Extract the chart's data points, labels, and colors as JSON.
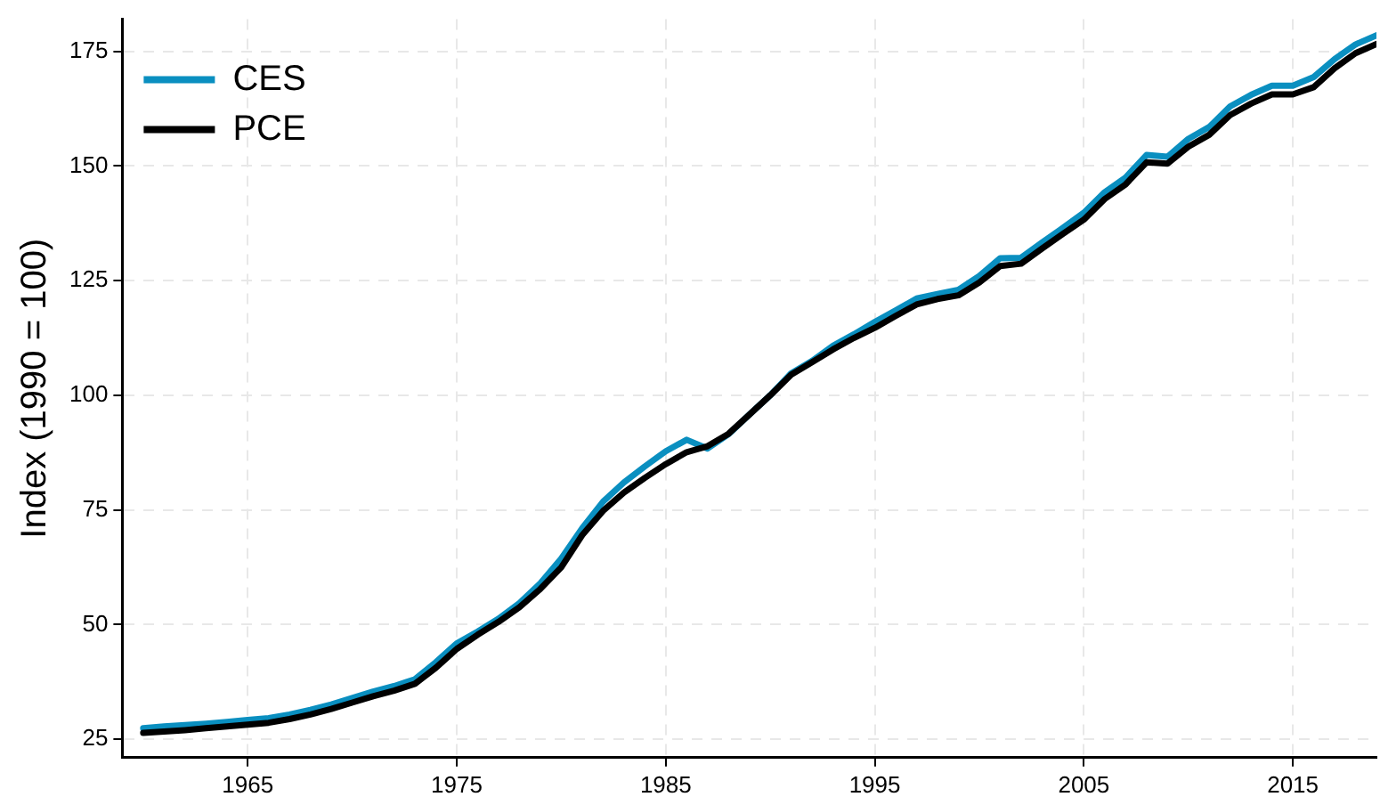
{
  "chart_data": {
    "type": "line",
    "ylabel": "Index (1990 = 100)",
    "x": [
      1960,
      1961,
      1962,
      1963,
      1964,
      1965,
      1966,
      1967,
      1968,
      1969,
      1970,
      1971,
      1972,
      1973,
      1974,
      1975,
      1976,
      1977,
      1978,
      1979,
      1980,
      1981,
      1982,
      1983,
      1984,
      1985,
      1986,
      1987,
      1988,
      1989,
      1990,
      1991,
      1992,
      1993,
      1994,
      1995,
      1996,
      1997,
      1998,
      1999,
      2000,
      2001,
      2002,
      2003,
      2004,
      2005,
      2006,
      2007,
      2008,
      2009,
      2010,
      2011,
      2012,
      2013,
      2014,
      2015,
      2016,
      2017,
      2018,
      2019
    ],
    "series": [
      {
        "name": "CES",
        "color": "#0a8fc0",
        "values": [
          27.4,
          27.8,
          28.1,
          28.4,
          28.8,
          29.2,
          29.6,
          30.4,
          31.4,
          32.6,
          34.0,
          35.4,
          36.6,
          38.1,
          41.8,
          45.9,
          48.5,
          51.3,
          54.7,
          59.0,
          64.4,
          71.0,
          76.8,
          81.0,
          84.5,
          87.8,
          90.3,
          88.4,
          91.5,
          95.8,
          100,
          104.8,
          107.5,
          110.8,
          113.3,
          116.0,
          118.5,
          121.1,
          122.1,
          123.0,
          126.0,
          129.9,
          130.0,
          133.3,
          136.5,
          139.8,
          144.3,
          147.5,
          152.4,
          152.0,
          155.9,
          158.5,
          163.0,
          165.5,
          167.5,
          167.5,
          169.4,
          173.3,
          176.5,
          178.5
        ]
      },
      {
        "name": "PCE",
        "color": "#000000",
        "values": [
          26.4,
          26.7,
          27.0,
          27.4,
          27.8,
          28.2,
          28.6,
          29.4,
          30.4,
          31.6,
          33.0,
          34.4,
          35.6,
          37.1,
          40.6,
          44.7,
          47.8,
          50.6,
          53.8,
          57.8,
          62.5,
          69.5,
          74.8,
          78.8,
          82.0,
          85.0,
          87.6,
          88.9,
          91.6,
          95.8,
          100,
          104.5,
          107.2,
          110.0,
          112.5,
          114.7,
          117.3,
          119.8,
          121.0,
          121.8,
          124.6,
          128.2,
          128.7,
          132.0,
          135.2,
          138.3,
          142.8,
          146.0,
          150.8,
          150.5,
          154.2,
          156.8,
          161.1,
          163.6,
          165.6,
          165.6,
          167.2,
          171.3,
          174.6,
          176.6
        ]
      }
    ],
    "xlim": [
      1959,
      2019
    ],
    "xticks": [
      1965,
      1975,
      1985,
      1995,
      2005,
      2015
    ],
    "ylim": [
      21,
      182
    ],
    "yticks": [
      25,
      50,
      75,
      100,
      125,
      150,
      175
    ],
    "grid": true,
    "legend": "top left",
    "marker": "none",
    "line_style": "solid"
  }
}
